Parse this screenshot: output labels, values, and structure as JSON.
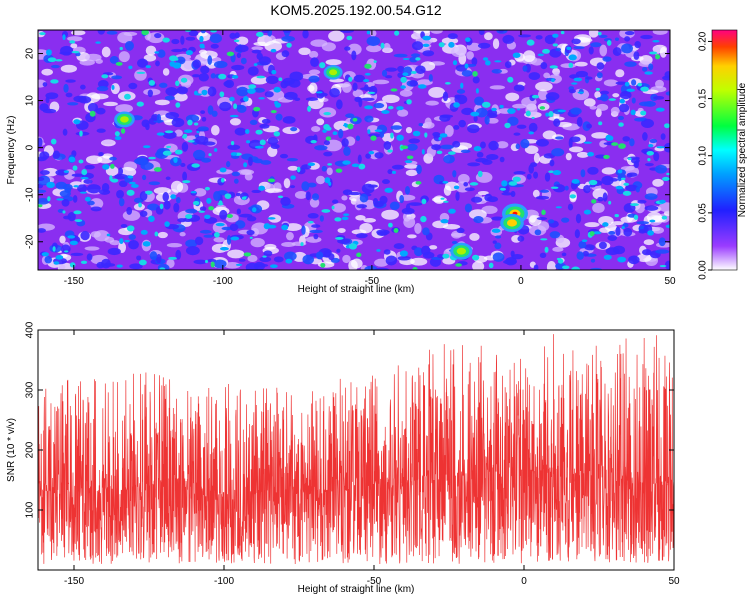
{
  "title": "KOM5.2025.192.00.54.G12",
  "chart_data": [
    {
      "type": "heatmap",
      "xlabel": "Height of straight line (km)",
      "ylabel": "Frequency (Hz)",
      "xlim": [
        -162,
        50
      ],
      "ylim": [
        -26,
        25
      ],
      "xticks": [
        "-150",
        "-100",
        "-50",
        "0",
        "50"
      ],
      "yticks": [
        "-20",
        "-10",
        "0",
        "10",
        "20"
      ],
      "colorbar": {
        "label": "Normalized spectral amplitude",
        "range": [
          0,
          0.21
        ],
        "ticks": [
          "0.00",
          "0.05",
          "0.10",
          "0.15",
          "0.20"
        ]
      },
      "hotspots": [
        {
          "x": -2,
          "y": -14,
          "v": 0.2
        },
        {
          "x": -3,
          "y": -16,
          "v": 0.17
        },
        {
          "x": -20,
          "y": -22,
          "v": 0.15
        },
        {
          "x": -133,
          "y": 6,
          "v": 0.13
        },
        {
          "x": -63,
          "y": 16,
          "v": 0.11
        }
      ],
      "colors": {
        "low": "#ffffff",
        "mid": "#7a1ee0",
        "high": "#ff0000"
      }
    },
    {
      "type": "line",
      "xlabel": "Height of straight line (km)",
      "ylabel": "SNR (10 * v/v)",
      "xlim": [
        -162,
        50
      ],
      "ylim": [
        0,
        400
      ],
      "xticks": [
        "-150",
        "-100",
        "-50",
        "0",
        "50"
      ],
      "yticks": [
        "100",
        "200",
        "300",
        "400"
      ],
      "series_color": "#ee3333",
      "envelope": {
        "x": [
          -162,
          -150,
          -140,
          -130,
          -120,
          -110,
          -100,
          -90,
          -80,
          -70,
          -60,
          -50,
          -40,
          -30,
          -20,
          -10,
          0,
          10,
          20,
          30,
          40,
          50
        ],
        "mean": [
          125,
          130,
          130,
          135,
          140,
          130,
          125,
          130,
          130,
          125,
          135,
          140,
          145,
          150,
          155,
          160,
          155,
          160,
          160,
          150,
          145,
          140
        ],
        "max": [
          310,
          325,
          315,
          330,
          340,
          300,
          310,
          320,
          300,
          300,
          330,
          330,
          350,
          370,
          390,
          370,
          350,
          400,
          370,
          380,
          400,
          380
        ]
      }
    }
  ]
}
